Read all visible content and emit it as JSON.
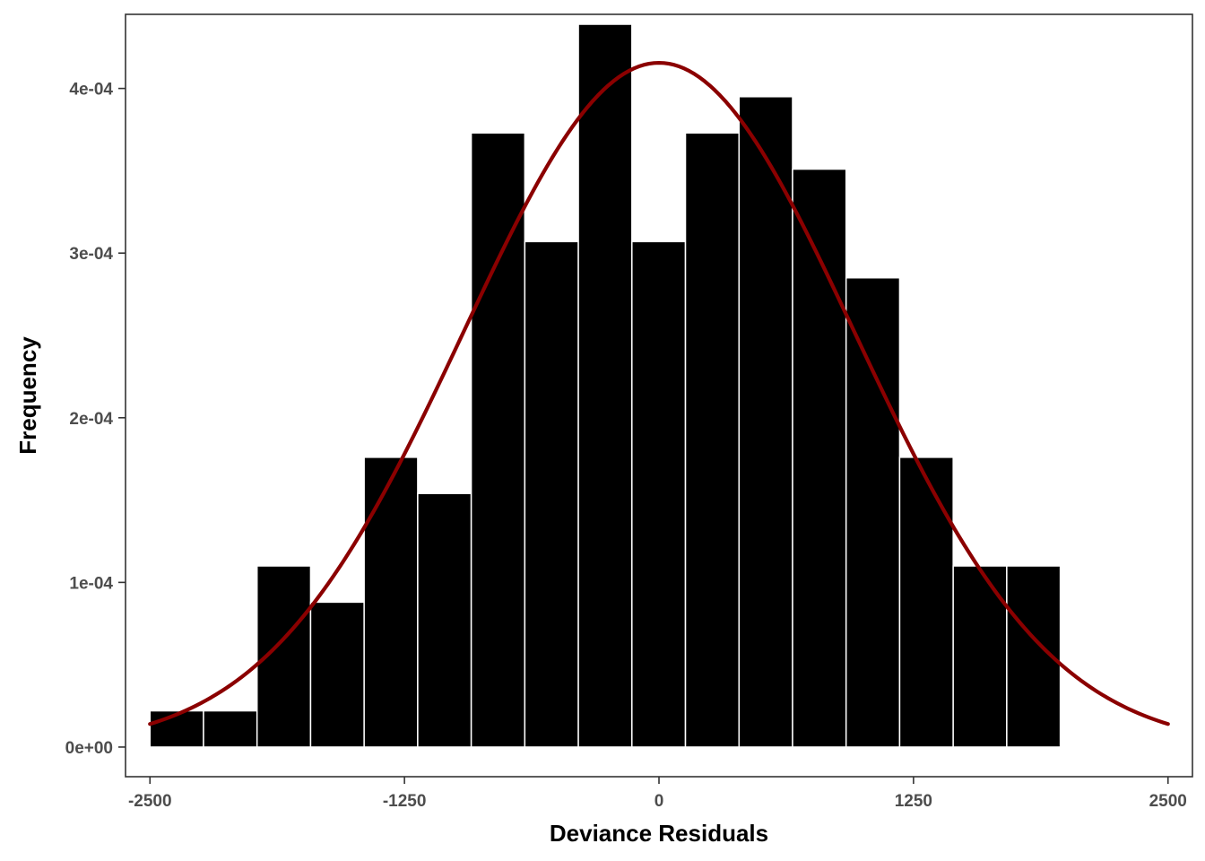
{
  "chart_data": {
    "type": "bar",
    "subtype": "histogram-with-density-curve",
    "title": "",
    "xlabel": "Deviance Residuals",
    "ylabel": "Frequency",
    "xlim": [
      -2620,
      2620
    ],
    "ylim": [
      -1.8e-05,
      0.000445
    ],
    "x_ticks": [
      -2500,
      -1250,
      0,
      1250,
      2500
    ],
    "x_tick_labels": [
      "-2500",
      "-1250",
      "0",
      "1250",
      "2500"
    ],
    "y_ticks": [
      0,
      0.0001,
      0.0002,
      0.0003,
      0.0004
    ],
    "y_tick_labels": [
      "0e+00",
      "1e-04",
      "2e-04",
      "3e-04",
      "4e-04"
    ],
    "grid": false,
    "legend": "none",
    "bin_width": 263,
    "bins": [
      {
        "x0": -2500,
        "x1": -2237,
        "value": 2.2e-05
      },
      {
        "x0": -2237,
        "x1": -1974,
        "value": 2.2e-05
      },
      {
        "x0": -1974,
        "x1": -1711,
        "value": 0.00011
      },
      {
        "x0": -1711,
        "x1": -1448,
        "value": 8.8e-05
      },
      {
        "x0": -1448,
        "x1": -1185,
        "value": 0.000176
      },
      {
        "x0": -1185,
        "x1": -922,
        "value": 0.000154
      },
      {
        "x0": -922,
        "x1": -659,
        "value": 0.000373
      },
      {
        "x0": -659,
        "x1": -396,
        "value": 0.000307
      },
      {
        "x0": -396,
        "x1": -133,
        "value": 0.000439
      },
      {
        "x0": -133,
        "x1": 130,
        "value": 0.000307
      },
      {
        "x0": 130,
        "x1": 393,
        "value": 0.000373
      },
      {
        "x0": 393,
        "x1": 656,
        "value": 0.000395
      },
      {
        "x0": 656,
        "x1": 919,
        "value": 0.000351
      },
      {
        "x0": 919,
        "x1": 1182,
        "value": 0.000285
      },
      {
        "x0": 1182,
        "x1": 1445,
        "value": 0.000176
      },
      {
        "x0": 1445,
        "x1": 1708,
        "value": 0.00011
      },
      {
        "x0": 1708,
        "x1": 1971,
        "value": 0.00011
      }
    ],
    "density_curve": {
      "kind": "normal",
      "mean": 0,
      "sd": 960,
      "x_range": [
        -2500,
        2500
      ],
      "color": "#8B0000"
    },
    "bar_fill": "#000000",
    "bar_outline": "#ffffff",
    "panel_border": "#333333"
  }
}
